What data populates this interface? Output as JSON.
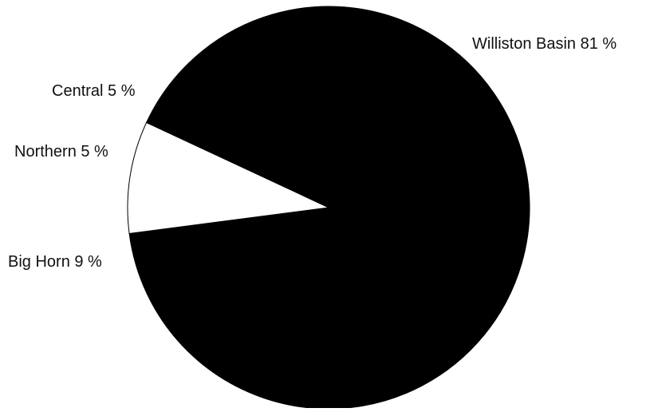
{
  "chart_data": {
    "type": "pie",
    "title": "",
    "slices": [
      {
        "name": "Williston Basin",
        "value": 81,
        "label": "Williston Basin 81 %",
        "color": "#000000"
      },
      {
        "name": "Central",
        "value": 5,
        "label": "Central 5 %",
        "color": "#000000"
      },
      {
        "name": "Northern",
        "value": 5,
        "label": "Northern 5 %",
        "color": "#000000"
      },
      {
        "name": "Big Horn",
        "value": 9,
        "label": "Big Horn 9 %",
        "color": "#ffffff"
      }
    ]
  }
}
